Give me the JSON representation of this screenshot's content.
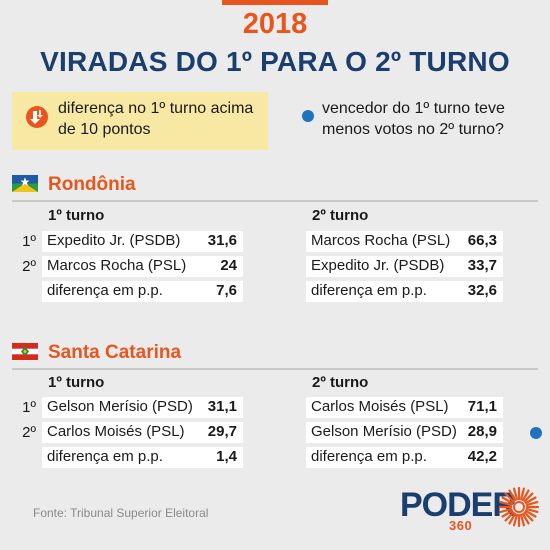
{
  "colors": {
    "accent": "#e8561f",
    "title": "#1a3e6e",
    "marker": "#1e73be",
    "legend_bg": "#f7e9a3",
    "cell_bg": "#ffffff",
    "background": "#ebebeb"
  },
  "header": {
    "year": "2018",
    "title": "VIRADAS DO 1º PARA O 2º TURNO"
  },
  "legend": {
    "arrow_icon": "down-arrow-icon",
    "diff_label": "diferença no 1º turno acima de 10 pontos",
    "dot_label": "vencedor do 1º turno teve menos votos no 2º turno?"
  },
  "chart_data": {
    "type": "table",
    "columns": [
      "1º turno",
      "2º turno"
    ],
    "row_labels": [
      "1º",
      "2º"
    ],
    "states": [
      {
        "name": "Rondônia",
        "flag_icon": "rondonia-flag-icon",
        "round1": [
          {
            "candidate": "Expedito Jr. (PSDB)",
            "value": "31,6"
          },
          {
            "candidate": "Marcos Rocha (PSL)",
            "value": "24"
          }
        ],
        "round1_diff": {
          "label": "diferença em p.p.",
          "value": "7,6"
        },
        "round2": [
          {
            "candidate": "Marcos Rocha (PSL)",
            "value": "66,3"
          },
          {
            "candidate": "Expedito Jr. (PSDB)",
            "value": "33,7"
          }
        ],
        "round2_diff": {
          "label": "diferença em p.p.",
          "value": "32,6"
        }
      },
      {
        "name": "Santa Catarina",
        "flag_icon": "santa-catarina-flag-icon",
        "round1": [
          {
            "candidate": "Gelson Merísio (PSD)",
            "value": "31,1"
          },
          {
            "candidate": "Carlos Moisés (PSL)",
            "value": "29,7"
          }
        ],
        "round1_diff": {
          "label": "diferença em p.p.",
          "value": "1,4"
        },
        "round2": [
          {
            "candidate": "Carlos Moisés (PSL)",
            "value": "71,1"
          },
          {
            "candidate": "Gelson Merísio (PSD)",
            "value": "28,9",
            "marker": true
          }
        ],
        "round2_diff": {
          "label": "diferença em p.p.",
          "value": "42,2"
        }
      }
    ]
  },
  "footer": {
    "source": "Fonte: Tribunal Superior Eleitoral",
    "logo_word": "PODER",
    "logo_number": "360"
  }
}
